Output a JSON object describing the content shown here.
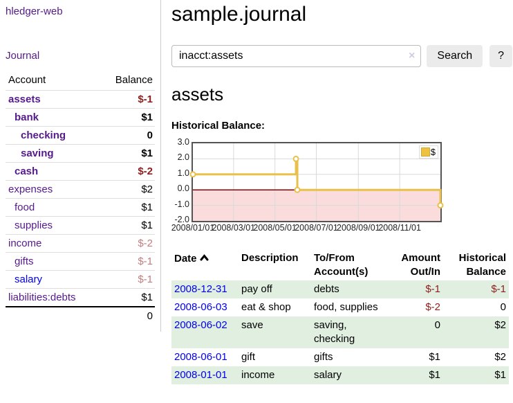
{
  "app": {
    "brand": "hledger-web",
    "nav": {
      "journal_label": "Journal"
    }
  },
  "sidebar": {
    "headers": {
      "account": "Account",
      "balance": "Balance"
    },
    "rows": [
      {
        "account": "assets",
        "balance": "$-1",
        "cls": "l1 cur"
      },
      {
        "account": "bank",
        "balance": "$1",
        "cls": "l2 cur"
      },
      {
        "account": "checking",
        "balance": "0",
        "cls": "l3 cur"
      },
      {
        "account": "saving",
        "balance": "$1",
        "cls": "l3 cur"
      },
      {
        "account": "cash",
        "balance": "$-2",
        "cls": "l2 cur"
      },
      {
        "account": "expenses",
        "balance": "$2",
        "cls": "l1"
      },
      {
        "account": "food",
        "balance": "$1",
        "cls": "l2"
      },
      {
        "account": "supplies",
        "balance": "$1",
        "cls": "l2"
      },
      {
        "account": "income",
        "balance": "$-2",
        "cls": "l1"
      },
      {
        "account": "gifts",
        "balance": "$-1",
        "cls": "l2"
      },
      {
        "account": "salary",
        "balance": "$-1",
        "cls": "l2 unv"
      },
      {
        "account": "liabilities:debts",
        "balance": "$1",
        "cls": "l1"
      }
    ],
    "total": "0"
  },
  "main": {
    "title": "sample.journal",
    "search": {
      "value": "inacct:assets",
      "clear_icon": "×",
      "search_button": "Search",
      "help_button": "?"
    },
    "account_heading": "assets",
    "chart_label": "Historical Balance:"
  },
  "chart_data": {
    "type": "line",
    "title": "Historical Balance:",
    "xlim": [
      0,
      365
    ],
    "ylim": [
      -2,
      3
    ],
    "grid": true,
    "legend_position": "top-right",
    "legend": {
      "label": "$",
      "swatch_color": "#edc240"
    },
    "yticks": [
      {
        "pos": 3,
        "label": "3.0"
      },
      {
        "pos": 2,
        "label": "2.0"
      },
      {
        "pos": 1,
        "label": "1.0"
      },
      {
        "pos": 0,
        "label": "0.0"
      },
      {
        "pos": -1,
        "label": "-1.0"
      },
      {
        "pos": -2,
        "label": "-2.0"
      }
    ],
    "xticks": [
      {
        "pos": 0,
        "label": "2008/01/01"
      },
      {
        "pos": 60,
        "label": "2008/03/01"
      },
      {
        "pos": 121,
        "label": "2008/05/01"
      },
      {
        "pos": 182,
        "label": "2008/07/01"
      },
      {
        "pos": 244,
        "label": "2008/09/01"
      },
      {
        "pos": 305,
        "label": "2008/11/01"
      }
    ],
    "zero_line_color": "#8b0000",
    "negative_region_fill": "#fbdcdc",
    "gridline_color": "#d9d9d9",
    "series": [
      {
        "name": "$",
        "color": "#e8c04a",
        "points": [
          [
            0,
            1
          ],
          [
            152,
            1
          ],
          [
            152,
            2
          ],
          [
            154,
            2
          ],
          [
            154,
            0
          ],
          [
            365,
            0
          ],
          [
            365,
            -1
          ]
        ],
        "markers": [
          [
            0,
            1
          ],
          [
            152,
            2
          ],
          [
            154,
            0
          ],
          [
            365,
            -1
          ]
        ]
      }
    ]
  },
  "register": {
    "headers": {
      "date": "Date",
      "description": "Description",
      "accounts": "To/From Account(s)",
      "amount": "Amount Out/In",
      "balance": "Historical Balance"
    },
    "rows": [
      {
        "date": "2008-12-31",
        "description": "pay off",
        "accounts": "debts",
        "amount": "$-1",
        "balance": "$-1"
      },
      {
        "date": "2008-06-03",
        "description": "eat & shop",
        "accounts": "food, supplies",
        "amount": "$-2",
        "balance": "0"
      },
      {
        "date": "2008-06-02",
        "description": "save",
        "accounts": "saving, checking",
        "amount": "0",
        "balance": "$2"
      },
      {
        "date": "2008-06-01",
        "description": "gift",
        "accounts": "gifts",
        "amount": "$1",
        "balance": "$2"
      },
      {
        "date": "2008-01-01",
        "description": "income",
        "accounts": "salary",
        "amount": "$1",
        "balance": "$1"
      }
    ]
  }
}
